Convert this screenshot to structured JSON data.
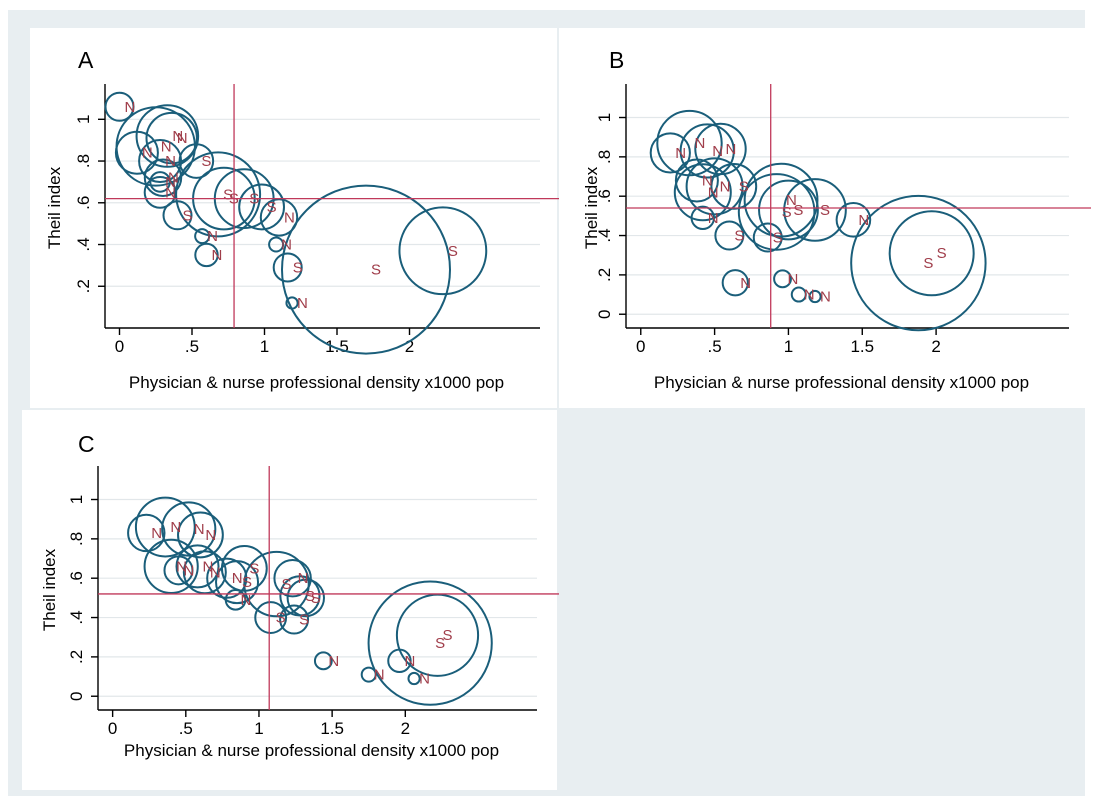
{
  "chart_data": [
    {
      "type": "scatter",
      "panel_label": "A",
      "xlabel": "Physician & nurse professional density x1000 pop",
      "ylabel": "Theil index",
      "x_ticks": [
        0,
        0.5,
        1,
        1.5,
        2
      ],
      "x_tick_labels": [
        "0",
        ".5",
        "1",
        "1.5",
        "2"
      ],
      "y_ticks": [
        0.2,
        0.4,
        0.6,
        0.8,
        1
      ],
      "y_tick_labels": [
        ".2",
        ".4",
        ".6",
        ".8",
        "1"
      ],
      "xlim": [
        -0.1,
        2.9
      ],
      "ylim": [
        0.0,
        1.15
      ],
      "ref_x": 0.79,
      "ref_y": 0.62,
      "grid": true,
      "points": [
        {
          "x": 0.0,
          "y": 1.06,
          "r": 1,
          "label": "N"
        },
        {
          "x": 0.25,
          "y": 0.87,
          "r": 2.8,
          "label": "N"
        },
        {
          "x": 0.33,
          "y": 0.92,
          "r": 2.2,
          "label": "N"
        },
        {
          "x": 0.36,
          "y": 0.91,
          "r": 1.8,
          "label": "N"
        },
        {
          "x": 0.12,
          "y": 0.84,
          "r": 1.5,
          "label": "N"
        },
        {
          "x": 0.28,
          "y": 0.8,
          "r": 1.5,
          "label": "N"
        },
        {
          "x": 0.53,
          "y": 0.8,
          "r": 1.2,
          "label": "S"
        },
        {
          "x": 0.3,
          "y": 0.72,
          "r": 1.3,
          "label": "N"
        },
        {
          "x": 0.28,
          "y": 0.65,
          "r": 1.1,
          "label": "N"
        },
        {
          "x": 0.28,
          "y": 0.7,
          "r": 0.7,
          "label": "N"
        },
        {
          "x": 0.68,
          "y": 0.64,
          "r": 3.0,
          "label": "S"
        },
        {
          "x": 0.72,
          "y": 0.62,
          "r": 2.2,
          "label": "S"
        },
        {
          "x": 0.86,
          "y": 0.62,
          "r": 2.1,
          "label": "S"
        },
        {
          "x": 0.98,
          "y": 0.58,
          "r": 1.6,
          "label": "S"
        },
        {
          "x": 1.1,
          "y": 0.53,
          "r": 1.3,
          "label": "N"
        },
        {
          "x": 0.4,
          "y": 0.54,
          "r": 1.0,
          "label": "S"
        },
        {
          "x": 0.57,
          "y": 0.44,
          "r": 0.5,
          "label": "N"
        },
        {
          "x": 0.6,
          "y": 0.35,
          "r": 0.8,
          "label": "N"
        },
        {
          "x": 1.08,
          "y": 0.4,
          "r": 0.5,
          "label": "N"
        },
        {
          "x": 1.16,
          "y": 0.29,
          "r": 1.0,
          "label": "S"
        },
        {
          "x": 1.7,
          "y": 0.28,
          "r": 6.0,
          "label": "S"
        },
        {
          "x": 2.23,
          "y": 0.37,
          "r": 3.1,
          "label": "S"
        },
        {
          "x": 1.19,
          "y": 0.12,
          "r": 0.4,
          "label": "N"
        }
      ]
    },
    {
      "type": "scatter",
      "panel_label": "B",
      "xlabel": "Physician & nurse professional density x1000 pop",
      "ylabel": "Theil index",
      "x_ticks": [
        0,
        0.5,
        1,
        1.5,
        2
      ],
      "x_tick_labels": [
        "0",
        ".5",
        "1",
        "1.5",
        "2"
      ],
      "y_ticks": [
        0,
        0.2,
        0.4,
        0.6,
        0.8,
        1
      ],
      "y_tick_labels": [
        "0",
        ".2",
        ".4",
        ".6",
        ".8",
        "1"
      ],
      "xlim": [
        -0.1,
        2.9
      ],
      "ylim": [
        -0.07,
        1.15
      ],
      "ref_x": 0.88,
      "ref_y": 0.54,
      "grid": true,
      "points": [
        {
          "x": 0.33,
          "y": 0.87,
          "r": 2.3,
          "label": "N"
        },
        {
          "x": 0.45,
          "y": 0.83,
          "r": 1.9,
          "label": "N"
        },
        {
          "x": 0.2,
          "y": 0.82,
          "r": 1.4,
          "label": "N"
        },
        {
          "x": 0.54,
          "y": 0.84,
          "r": 1.8,
          "label": "N"
        },
        {
          "x": 0.38,
          "y": 0.68,
          "r": 1.5,
          "label": "N"
        },
        {
          "x": 0.5,
          "y": 0.65,
          "r": 2.0,
          "label": "N"
        },
        {
          "x": 0.42,
          "y": 0.62,
          "r": 2.0,
          "label": "N"
        },
        {
          "x": 0.63,
          "y": 0.65,
          "r": 1.6,
          "label": "S"
        },
        {
          "x": 0.95,
          "y": 0.58,
          "r": 2.6,
          "label": "N"
        },
        {
          "x": 0.92,
          "y": 0.52,
          "r": 2.7,
          "label": "S"
        },
        {
          "x": 1.0,
          "y": 0.53,
          "r": 2.1,
          "label": "S"
        },
        {
          "x": 1.18,
          "y": 0.53,
          "r": 2.2,
          "label": "S"
        },
        {
          "x": 1.44,
          "y": 0.48,
          "r": 1.2,
          "label": "N"
        },
        {
          "x": 0.42,
          "y": 0.49,
          "r": 0.8,
          "label": "N"
        },
        {
          "x": 0.6,
          "y": 0.4,
          "r": 1.0,
          "label": "S"
        },
        {
          "x": 0.86,
          "y": 0.39,
          "r": 1.0,
          "label": "S"
        },
        {
          "x": 1.88,
          "y": 0.26,
          "r": 4.8,
          "label": "S"
        },
        {
          "x": 1.97,
          "y": 0.31,
          "r": 3.0,
          "label": "S"
        },
        {
          "x": 0.64,
          "y": 0.16,
          "r": 0.9,
          "label": "N"
        },
        {
          "x": 0.96,
          "y": 0.18,
          "r": 0.6,
          "label": "N"
        },
        {
          "x": 1.07,
          "y": 0.1,
          "r": 0.5,
          "label": "N"
        },
        {
          "x": 1.18,
          "y": 0.09,
          "r": 0.4,
          "label": "N"
        }
      ]
    },
    {
      "type": "scatter",
      "panel_label": "C",
      "xlabel": "Physician & nurse professional density x1000 pop",
      "ylabel": "Theil index",
      "x_ticks": [
        0,
        0.5,
        1,
        1.5,
        2
      ],
      "x_tick_labels": [
        "0",
        ".5",
        "1",
        "1.5",
        "2"
      ],
      "y_ticks": [
        0,
        0.2,
        0.4,
        0.6,
        0.8,
        1
      ],
      "y_tick_labels": [
        "0",
        ".2",
        ".4",
        ".6",
        ".8",
        "1"
      ],
      "xlim": [
        -0.1,
        2.9
      ],
      "ylim": [
        -0.07,
        1.15
      ],
      "ref_x": 1.07,
      "ref_y": 0.52,
      "grid": true,
      "points": [
        {
          "x": 0.36,
          "y": 0.86,
          "r": 2.1,
          "label": "N"
        },
        {
          "x": 0.52,
          "y": 0.85,
          "r": 1.9,
          "label": "N"
        },
        {
          "x": 0.23,
          "y": 0.83,
          "r": 1.3,
          "label": "N"
        },
        {
          "x": 0.6,
          "y": 0.82,
          "r": 1.6,
          "label": "N"
        },
        {
          "x": 0.4,
          "y": 0.66,
          "r": 1.9,
          "label": "N"
        },
        {
          "x": 0.58,
          "y": 0.66,
          "r": 1.5,
          "label": "N"
        },
        {
          "x": 0.63,
          "y": 0.63,
          "r": 1.5,
          "label": "N"
        },
        {
          "x": 0.9,
          "y": 0.65,
          "r": 1.6,
          "label": "S"
        },
        {
          "x": 0.78,
          "y": 0.6,
          "r": 1.4,
          "label": "N"
        },
        {
          "x": 0.85,
          "y": 0.58,
          "r": 1.5,
          "label": "S"
        },
        {
          "x": 1.12,
          "y": 0.57,
          "r": 2.3,
          "label": "S"
        },
        {
          "x": 1.23,
          "y": 0.6,
          "r": 1.3,
          "label": "N"
        },
        {
          "x": 1.28,
          "y": 0.51,
          "r": 1.4,
          "label": "S"
        },
        {
          "x": 1.32,
          "y": 0.5,
          "r": 1.3,
          "label": "S"
        },
        {
          "x": 0.84,
          "y": 0.49,
          "r": 0.7,
          "label": "N"
        },
        {
          "x": 1.08,
          "y": 0.4,
          "r": 1.1,
          "label": "S"
        },
        {
          "x": 1.24,
          "y": 0.39,
          "r": 1.0,
          "label": "S"
        },
        {
          "x": 0.45,
          "y": 0.64,
          "r": 1.0,
          "label": "N"
        },
        {
          "x": 2.17,
          "y": 0.27,
          "r": 4.4,
          "label": "S"
        },
        {
          "x": 2.22,
          "y": 0.31,
          "r": 2.9,
          "label": "S"
        },
        {
          "x": 1.44,
          "y": 0.18,
          "r": 0.6,
          "label": "N"
        },
        {
          "x": 1.96,
          "y": 0.18,
          "r": 0.8,
          "label": "N"
        },
        {
          "x": 1.75,
          "y": 0.11,
          "r": 0.5,
          "label": "N"
        },
        {
          "x": 2.06,
          "y": 0.09,
          "r": 0.4,
          "label": "N"
        }
      ]
    }
  ]
}
